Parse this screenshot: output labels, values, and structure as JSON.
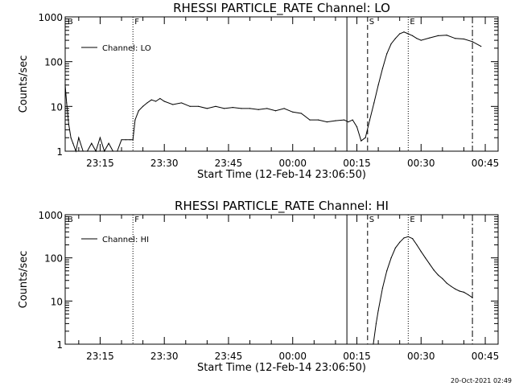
{
  "timestamp": "20-Oct-2021 02:49",
  "chart_data": [
    {
      "type": "line",
      "title": "RHESSI PARTICLE_RATE Channel: LO",
      "xlabel": "Start Time (12-Feb-14 23:06:50)",
      "ylabel": "Counts/sec",
      "yscale": "log",
      "ylim": [
        1,
        1000
      ],
      "yticks": [
        "1",
        "10",
        "100",
        "1000"
      ],
      "xlim": [
        "23:06:50",
        "00:48:00"
      ],
      "xticks": [
        "23:15",
        "23:30",
        "23:45",
        "00:00",
        "00:15",
        "00:30",
        "00:45"
      ],
      "legend": {
        "position": "top-left",
        "label": "Channel: LO"
      },
      "series": [
        {
          "name": "Channel: LO",
          "x": [
            "23:06:50",
            "23:07:10",
            "23:07:40",
            "23:08:10",
            "23:08:40",
            "23:09:20",
            "23:10:00",
            "23:11:00",
            "23:12:00",
            "23:13:00",
            "23:14:00",
            "23:15:00",
            "23:16:00",
            "23:17:00",
            "23:18:00",
            "23:19:00",
            "23:20:00",
            "23:21:00",
            "23:22:00",
            "23:22:40",
            "23:23:10",
            "23:24:00",
            "23:25:00",
            "23:26:00",
            "23:27:00",
            "23:28:00",
            "23:29:00",
            "23:30:00",
            "23:32:00",
            "23:34:00",
            "23:36:00",
            "23:38:00",
            "23:40:00",
            "23:42:00",
            "23:44:00",
            "23:46:00",
            "23:48:00",
            "23:50:00",
            "23:52:00",
            "23:54:00",
            "23:56:00",
            "23:58:00",
            "00:00:00",
            "00:02:00",
            "00:04:00",
            "00:06:00",
            "00:08:00",
            "00:10:00",
            "00:12:00",
            "00:13:00",
            "00:14:00",
            "00:15:00",
            "00:16:00",
            "00:17:00",
            "00:18:00",
            "00:19:00",
            "00:20:00",
            "00:21:00",
            "00:22:00",
            "00:23:00",
            "00:24:00",
            "00:25:00",
            "00:26:00",
            "00:27:00",
            "00:28:00",
            "00:29:00",
            "00:30:00",
            "00:32:00",
            "00:34:00",
            "00:36:00",
            "00:38:00",
            "00:40:00",
            "00:42:00",
            "00:44:00"
          ],
          "y": [
            30,
            12,
            4,
            2,
            1.5,
            1,
            2,
            1,
            1,
            1.5,
            1,
            2,
            1,
            1.5,
            1,
            1,
            1.8,
            1.8,
            1.8,
            1.8,
            5,
            8,
            10,
            12,
            14,
            13,
            15,
            13,
            11,
            12,
            10,
            10,
            9,
            10,
            9,
            9.5,
            9,
            9,
            8.5,
            9,
            8,
            9,
            7.5,
            7,
            5,
            5,
            4.5,
            4.8,
            5,
            4.5,
            5,
            3.5,
            1.7,
            2,
            5,
            12,
            30,
            70,
            150,
            250,
            330,
            420,
            460,
            420,
            380,
            330,
            300,
            340,
            380,
            390,
            330,
            320,
            280,
            220
          ]
        }
      ],
      "markers": [
        {
          "label": "B",
          "time": "23:07:00",
          "style": "none"
        },
        {
          "label": "F",
          "time": "23:22:40",
          "style": "dotted"
        },
        {
          "label": "",
          "time": "00:12:40",
          "style": "solid"
        },
        {
          "label": "S",
          "time": "00:17:30",
          "style": "dashed"
        },
        {
          "label": "E",
          "time": "00:27:00",
          "style": "dotted"
        },
        {
          "label": "",
          "time": "00:42:00",
          "style": "dashdot"
        }
      ]
    },
    {
      "type": "line",
      "title": "RHESSI PARTICLE_RATE Channel: HI",
      "xlabel": "Start Time (12-Feb-14 23:06:50)",
      "ylabel": "Counts/sec",
      "yscale": "log",
      "ylim": [
        1,
        1000
      ],
      "yticks": [
        "1",
        "10",
        "100",
        "1000"
      ],
      "xlim": [
        "23:06:50",
        "00:48:00"
      ],
      "xticks": [
        "23:15",
        "23:30",
        "23:45",
        "00:00",
        "00:15",
        "00:30",
        "00:45"
      ],
      "legend": {
        "position": "top-left",
        "label": "Channel: HI"
      },
      "series": [
        {
          "name": "Channel: HI",
          "x": [
            "00:18:50",
            "00:19:30",
            "00:20:00",
            "00:21:00",
            "00:22:00",
            "00:23:00",
            "00:24:00",
            "00:25:00",
            "00:26:00",
            "00:27:00",
            "00:28:00",
            "00:29:00",
            "00:30:00",
            "00:31:00",
            "00:32:00",
            "00:33:00",
            "00:34:00",
            "00:35:00",
            "00:36:00",
            "00:37:00",
            "00:38:00",
            "00:39:00",
            "00:40:00",
            "00:41:00",
            "00:42:00"
          ],
          "y": [
            1,
            3,
            6,
            20,
            50,
            100,
            170,
            230,
            290,
            310,
            280,
            200,
            140,
            100,
            72,
            52,
            40,
            33,
            26,
            22,
            19,
            17,
            16,
            14,
            12
          ]
        }
      ],
      "markers": [
        {
          "label": "B",
          "time": "23:07:00",
          "style": "none"
        },
        {
          "label": "F",
          "time": "23:22:40",
          "style": "dotted"
        },
        {
          "label": "",
          "time": "00:12:40",
          "style": "solid"
        },
        {
          "label": "S",
          "time": "00:17:30",
          "style": "dashed"
        },
        {
          "label": "E",
          "time": "00:27:00",
          "style": "dotted"
        },
        {
          "label": "",
          "time": "00:42:00",
          "style": "dashdot"
        }
      ]
    }
  ]
}
